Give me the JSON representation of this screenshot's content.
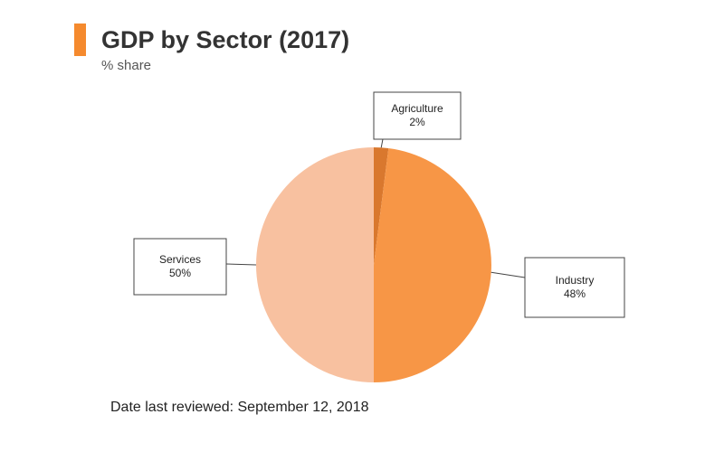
{
  "header": {
    "title": "GDP by Sector (2017)",
    "subtitle": "% share",
    "accent_color": "#f58a2e"
  },
  "chart_data": {
    "type": "pie",
    "categories": [
      "Agriculture",
      "Industry",
      "Services"
    ],
    "values": [
      2,
      48,
      50
    ],
    "value_suffix": "%",
    "colors": [
      "#d9782e",
      "#f79646",
      "#f8c1a0"
    ],
    "start": "12 o'clock",
    "direction": "clockwise"
  },
  "footer": {
    "note": "Date last reviewed: September 12, 2018"
  }
}
